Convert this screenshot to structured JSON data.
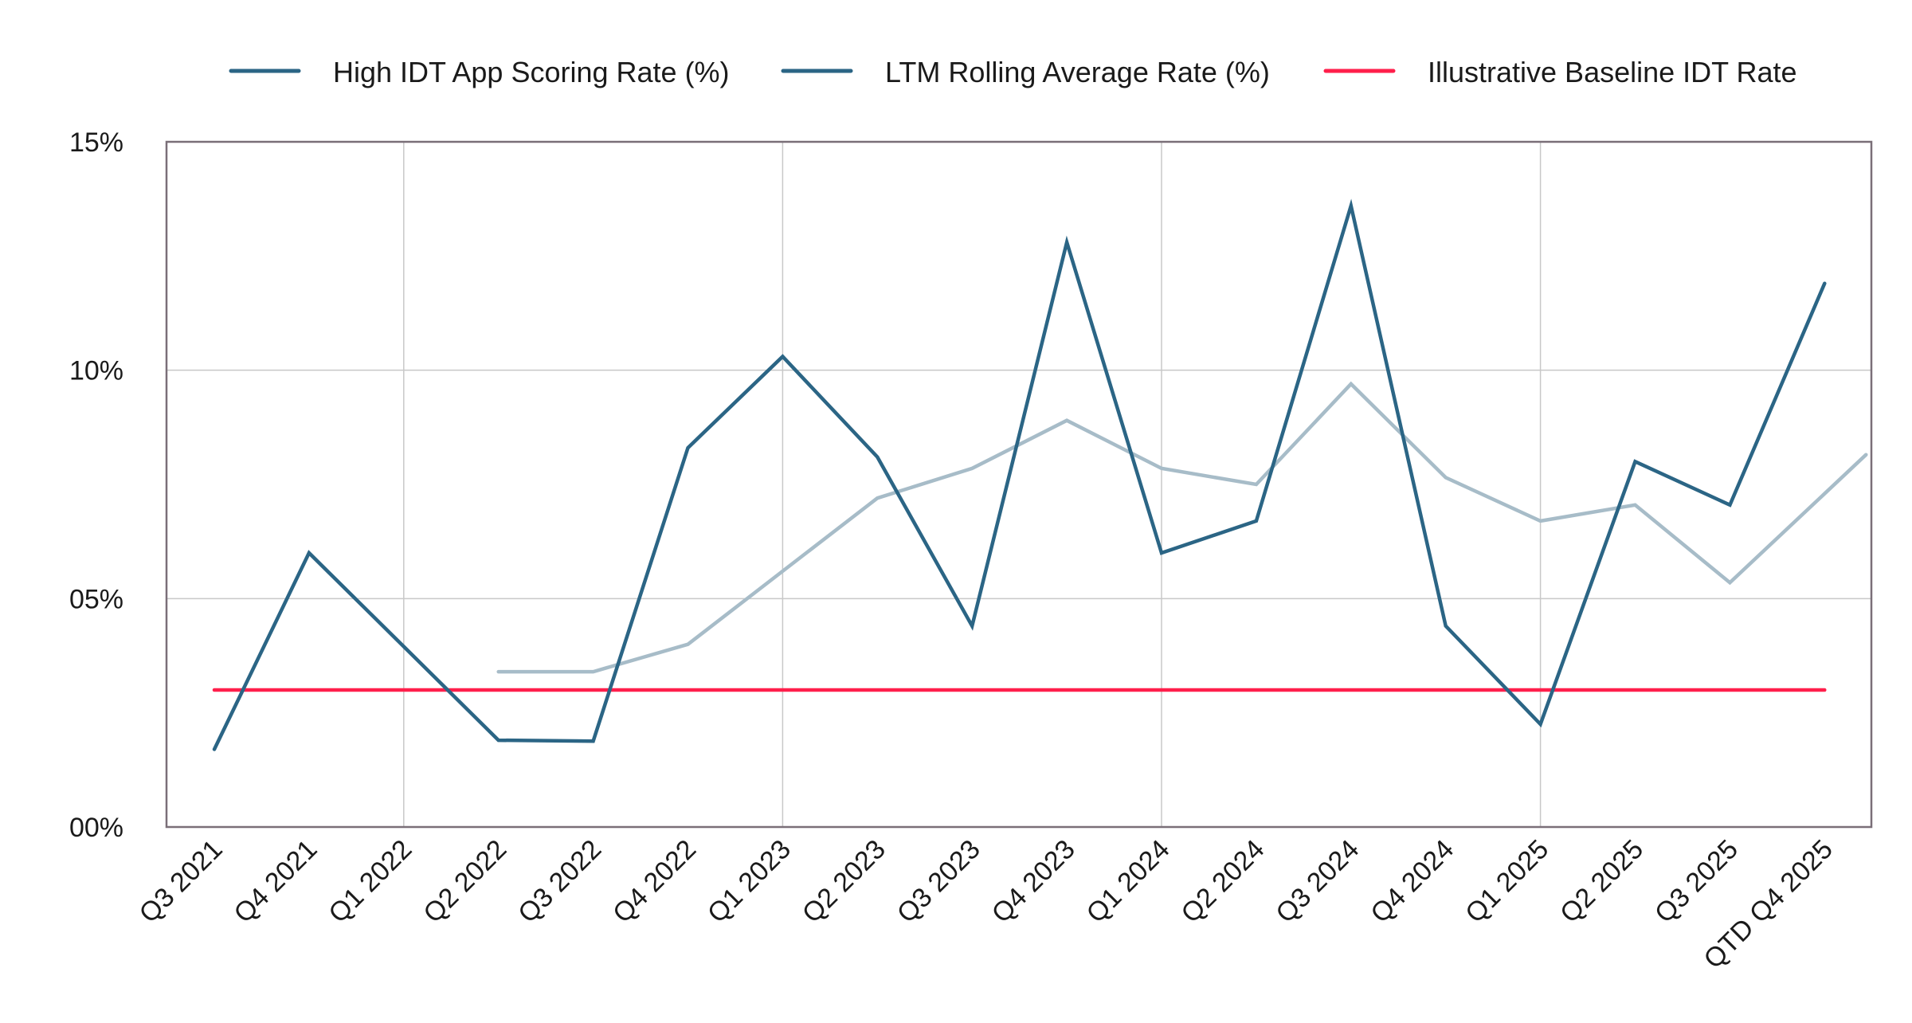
{
  "chart_data": {
    "type": "line",
    "title": "",
    "xlabel": "",
    "ylabel": "",
    "categories": [
      "Q3 2021",
      "Q4 2021",
      "Q1 2022",
      "Q2 2022",
      "Q3 2022",
      "Q4 2022",
      "Q1 2023",
      "Q2 2023",
      "Q3 2023",
      "Q4 2023",
      "Q1 2024",
      "Q2 2024",
      "Q3 2024",
      "Q4 2024",
      "Q1 2025",
      "Q2 2025",
      "Q3 2025",
      "QTD Q4 2025"
    ],
    "ylim": [
      0,
      15
    ],
    "yticks": [
      0,
      5,
      10,
      15
    ],
    "ytick_labels": [
      "00%",
      "05%",
      "10%",
      "15%"
    ],
    "grid": true,
    "legend_placement": "top",
    "series": [
      {
        "name": "High IDT App Scoring Rate (%)",
        "color": "#2b6585",
        "values": [
          1.7,
          6.0,
          3.95,
          1.9,
          1.88,
          8.3,
          10.3,
          8.1,
          4.4,
          12.8,
          6.0,
          6.7,
          13.6,
          4.4,
          2.25,
          8.0,
          7.05,
          11.9
        ]
      },
      {
        "name": "LTM Rolling Average Rate (%)",
        "color": "#a7bcc8",
        "legend_color": "#2b6585",
        "values": [
          null,
          null,
          null,
          3.4,
          3.4,
          4.0,
          5.6,
          7.2,
          7.85,
          8.9,
          7.85,
          7.5,
          9.7,
          7.65,
          6.7,
          7.05,
          5.35,
          8.15
        ]
      },
      {
        "name": "Illustrative Baseline IDT Rate",
        "color": "#ff1f4b",
        "values": [
          3.0,
          3.0,
          3.0,
          3.0,
          3.0,
          3.0,
          3.0,
          3.0,
          3.0,
          3.0,
          3.0,
          3.0,
          3.0,
          3.0,
          3.0,
          3.0,
          3.0,
          3.0
        ]
      }
    ]
  }
}
